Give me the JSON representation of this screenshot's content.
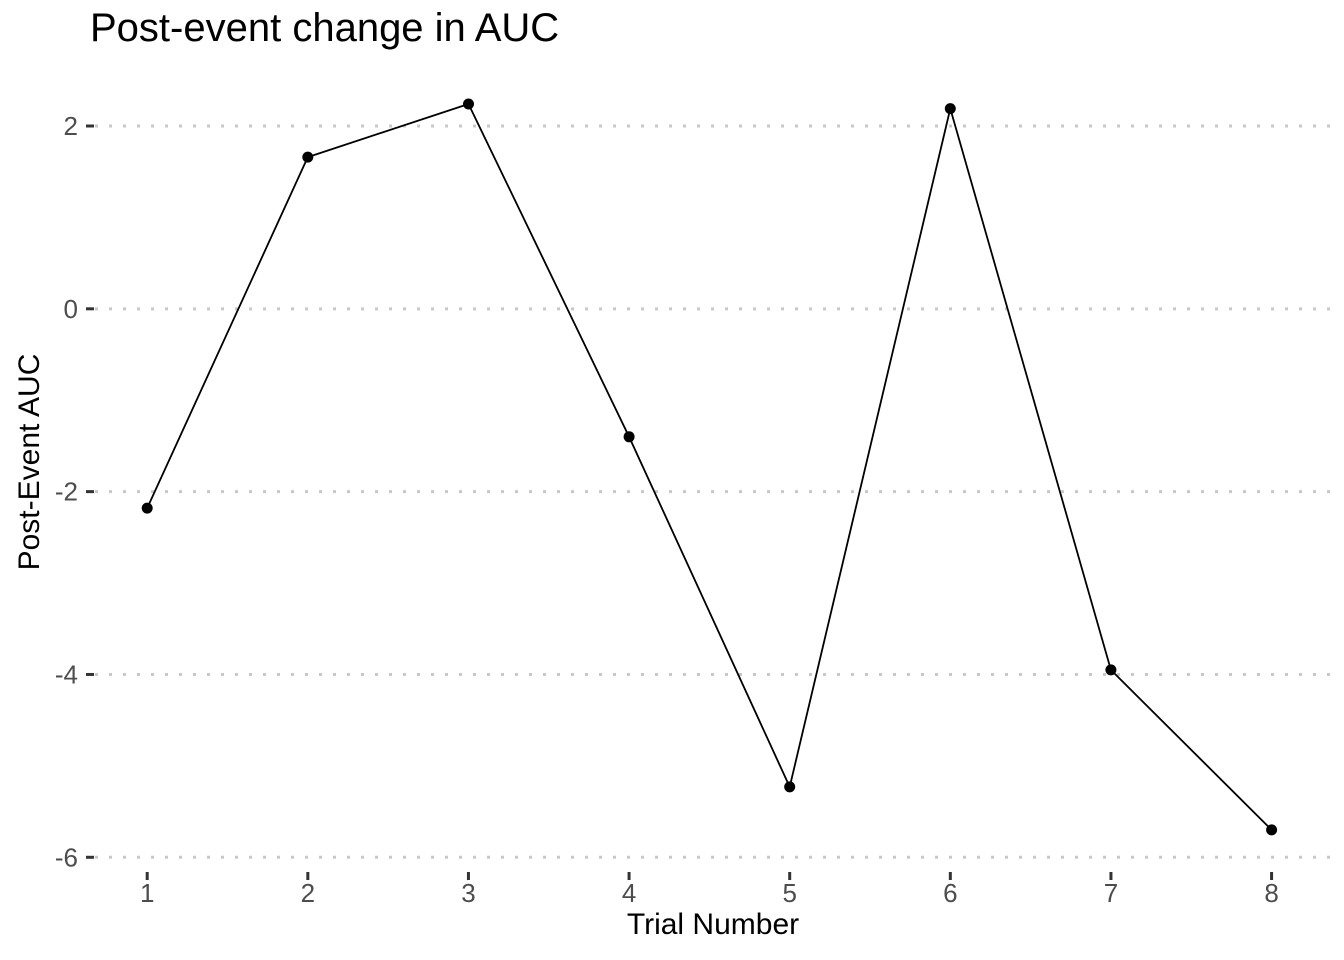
{
  "page": {
    "background_color": "#ffffff"
  },
  "chart_data": {
    "type": "line",
    "title": "Post-event change in AUC",
    "xlabel": "Trial Number",
    "ylabel": "Post-Event AUC",
    "series": [
      {
        "name": "Post-Event AUC",
        "x": [
          1,
          2,
          3,
          4,
          5,
          6,
          7,
          8
        ],
        "values": [
          -2.18,
          1.66,
          2.24,
          -1.4,
          -5.23,
          2.19,
          -3.95,
          -5.7
        ]
      }
    ],
    "x_ticks": [
      1,
      2,
      3,
      4,
      5,
      6,
      7,
      8
    ],
    "y_ticks": [
      2,
      0,
      -2,
      -4,
      -6
    ],
    "xlim": [
      0.675,
      8.37
    ],
    "ylim": [
      -6.15,
      2.7
    ],
    "grid": "horizontal dotted major gridlines only, no vertical gridlines, no panel border",
    "legend": "none",
    "marker": "filled circle",
    "colors": {
      "line": "#000000",
      "point": "#000000",
      "gridline": "#c8c8c8",
      "tick_mark": "#333333",
      "tick_label": "#4d4d4d",
      "axis_title": "#000000",
      "title": "#000000"
    }
  }
}
